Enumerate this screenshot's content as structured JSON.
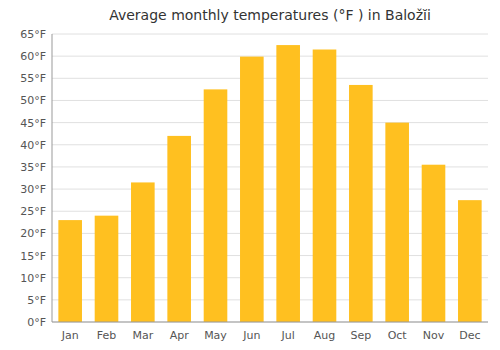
{
  "chart_data": {
    "type": "bar",
    "title": "Average monthly temperatures (°F ) in Baložĭi",
    "categories": [
      "Jan",
      "Feb",
      "Mar",
      "Apr",
      "May",
      "Jun",
      "Jul",
      "Aug",
      "Sep",
      "Oct",
      "Nov",
      "Dec"
    ],
    "values": [
      23.0,
      24.0,
      31.5,
      42.0,
      52.5,
      59.9,
      62.5,
      61.5,
      53.5,
      45.0,
      35.5,
      27.5
    ],
    "color": "#FFC020",
    "ylim": [
      0,
      65
    ],
    "yticks": [
      {
        "value": 0,
        "label": "0°F"
      },
      {
        "value": 5,
        "label": "5°F"
      },
      {
        "value": 10,
        "label": "10°F"
      },
      {
        "value": 15,
        "label": "15°F"
      },
      {
        "value": 20,
        "label": "20°F"
      },
      {
        "value": 25,
        "label": "25°F"
      },
      {
        "value": 30,
        "label": "30°F"
      },
      {
        "value": 35,
        "label": "35°F"
      },
      {
        "value": 40,
        "label": "40°F"
      },
      {
        "value": 45,
        "label": "45°F"
      },
      {
        "value": 50,
        "label": "50°F"
      },
      {
        "value": 55,
        "label": "55°F"
      },
      {
        "value": 60,
        "label": "60°F"
      },
      {
        "value": 65,
        "label": "65°F"
      }
    ],
    "grid": true
  }
}
